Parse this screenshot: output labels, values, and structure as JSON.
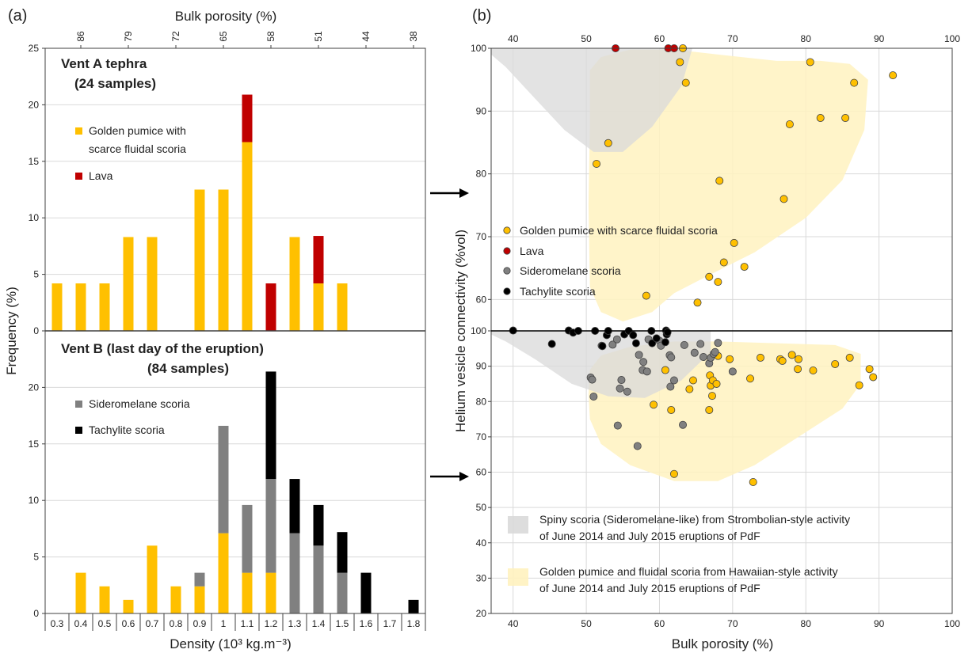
{
  "panel_labels": {
    "a": "(a)",
    "b": "(b)"
  },
  "colors": {
    "golden": "#FFC000",
    "lava": "#C00000",
    "sideromelane": "#808080",
    "tachylite": "#000000",
    "spiny_region": "#D9D9D9",
    "golden_region": "#FFF2BF",
    "grid": "#D9D9D9",
    "axis": "#404040"
  },
  "chart_data": [
    {
      "id": "a-top",
      "type": "bar",
      "title": "Vent A tephra",
      "subtitle": "(24 samples)",
      "top_axis_label": "Bulk porosity (%)",
      "top_tick_labels": [
        "86",
        "79",
        "72",
        "65",
        "58",
        "51",
        "44",
        "38"
      ],
      "ylabel": "Frequency (%)",
      "ylim": [
        0,
        25
      ],
      "yticks": [
        0,
        5,
        10,
        15,
        20,
        25
      ],
      "categories": [
        "0.3",
        "0.4",
        "0.5",
        "0.6",
        "0.7",
        "0.8",
        "0.9",
        "1",
        "1.1",
        "1.2",
        "1.3",
        "1.4",
        "1.5",
        "1.6",
        "1.7",
        "1.8"
      ],
      "stacked": true,
      "series": [
        {
          "name": "Golden pumice with\nscarce fluidal scoria",
          "color_key": "golden",
          "values": [
            4.2,
            4.2,
            4.2,
            8.3,
            8.3,
            0,
            12.5,
            12.5,
            16.7,
            0,
            8.3,
            4.2,
            4.2,
            0,
            0,
            0
          ]
        },
        {
          "name": "Lava",
          "color_key": "lava",
          "values": [
            0,
            0,
            0,
            0,
            0,
            0,
            0,
            0,
            4.2,
            4.2,
            0,
            4.2,
            0,
            0,
            0,
            0
          ]
        }
      ]
    },
    {
      "id": "a-bottom",
      "type": "bar",
      "title": "Vent B (last day of the eruption)",
      "subtitle": "(84 samples)",
      "ylabel": "Frequency (%)",
      "xlabel": "Density (10³ kg.m⁻³)",
      "ylim": [
        0,
        25
      ],
      "yticks": [
        0,
        5,
        10,
        15,
        20
      ],
      "categories": [
        "0.3",
        "0.4",
        "0.5",
        "0.6",
        "0.7",
        "0.8",
        "0.9",
        "1",
        "1.1",
        "1.2",
        "1.3",
        "1.4",
        "1.5",
        "1.6",
        "1.7",
        "1.8"
      ],
      "stacked": true,
      "series": [
        {
          "name": "",
          "color_key": "golden",
          "values": [
            0,
            3.6,
            2.4,
            1.2,
            6.0,
            2.4,
            2.4,
            7.1,
            3.6,
            3.6,
            0,
            0,
            0,
            0,
            0,
            0
          ]
        },
        {
          "name": "Sideromelane scoria",
          "color_key": "sideromelane",
          "values": [
            0,
            0,
            0,
            0,
            0,
            0,
            1.2,
            9.5,
            6.0,
            8.3,
            7.1,
            6.0,
            3.6,
            0,
            0,
            0
          ]
        },
        {
          "name": "Tachylite scoria",
          "color_key": "tachylite",
          "values": [
            0,
            0,
            0,
            0,
            0,
            0,
            0,
            0,
            0,
            9.5,
            4.8,
            3.6,
            3.6,
            3.6,
            0,
            1.2
          ]
        }
      ]
    },
    {
      "id": "b",
      "type": "scatter",
      "xlabel": "Bulk porosity (%)",
      "ylabel": "Helium vesicle connectivity (%vol)",
      "xlim": [
        37,
        100
      ],
      "xticks": [
        40,
        50,
        60,
        70,
        80,
        90,
        100
      ],
      "top_ylim": [
        55,
        100
      ],
      "top_yticks": [
        60,
        70,
        80,
        90,
        100
      ],
      "bottom_ylim": [
        20,
        100
      ],
      "bottom_yticks": [
        20,
        30,
        40,
        50,
        60,
        70,
        80,
        90,
        100
      ],
      "grid": true,
      "legend": [
        {
          "name": "Golden pumice with scarce fluidal scoria",
          "color_key": "golden"
        },
        {
          "name": "Lava",
          "color_key": "lava"
        },
        {
          "name": "Sideromelane scoria",
          "color_key": "sideromelane"
        },
        {
          "name": "Tachylite scoria",
          "color_key": "tachylite"
        }
      ],
      "regions": [
        {
          "name": "Spiny scoria (Sideromelane-like) from Strombolian-style activity\nof June 2014 and July 2015 eruptions of PdF",
          "color_key": "spiny_region"
        },
        {
          "name": "Golden pumice and fluidal scoria from Hawaiian-style activity\nof June 2014 and July 2015 eruptions of PdF",
          "color_key": "golden_region"
        }
      ],
      "top_series": [
        {
          "name": "Golden pumice with scarce fluidal scoria",
          "color_key": "golden",
          "points": [
            [
              51.4,
              81.6
            ],
            [
              53.0,
              84.9
            ],
            [
              58.2,
              60.6
            ],
            [
              62.8,
              97.8
            ],
            [
              63.2,
              100
            ],
            [
              63.6,
              94.5
            ],
            [
              65.2,
              59.5
            ],
            [
              66.8,
              63.6
            ],
            [
              68.0,
              62.8
            ],
            [
              68.2,
              78.9
            ],
            [
              68.8,
              65.9
            ],
            [
              70.2,
              69.0
            ],
            [
              71.6,
              65.2
            ],
            [
              77.0,
              76.0
            ],
            [
              77.8,
              87.9
            ],
            [
              80.6,
              97.8
            ],
            [
              82.0,
              88.9
            ],
            [
              85.4,
              88.9
            ],
            [
              86.6,
              94.5
            ],
            [
              91.9,
              95.7
            ]
          ]
        },
        {
          "name": "Lava",
          "color_key": "lava",
          "points": [
            [
              54.0,
              100
            ],
            [
              61.2,
              100
            ],
            [
              62.0,
              100
            ]
          ]
        }
      ],
      "bottom_series": [
        {
          "name": "Golden pumice",
          "color_key": "golden",
          "points": [
            [
              59.2,
              79.1
            ],
            [
              60.8,
              88.9
            ],
            [
              61.6,
              77.6
            ],
            [
              62.0,
              59.5
            ],
            [
              64.1,
              83.5
            ],
            [
              64.6,
              86.0
            ],
            [
              66.8,
              77.6
            ],
            [
              66.9,
              87.4
            ],
            [
              67.0,
              84.5
            ],
            [
              67.2,
              81.6
            ],
            [
              67.3,
              86.0
            ],
            [
              67.8,
              85.0
            ],
            [
              68.0,
              92.9
            ],
            [
              69.6,
              92.0
            ],
            [
              72.4,
              86.5
            ],
            [
              72.8,
              57.2
            ],
            [
              73.8,
              92.4
            ],
            [
              76.5,
              92.0
            ],
            [
              76.8,
              91.5
            ],
            [
              78.1,
              93.2
            ],
            [
              78.9,
              89.2
            ],
            [
              79.0,
              92.0
            ],
            [
              81.0,
              88.8
            ],
            [
              84.0,
              90.6
            ],
            [
              86.0,
              92.4
            ],
            [
              87.3,
              84.6
            ],
            [
              88.7,
              89.2
            ],
            [
              89.2,
              86.9
            ]
          ]
        },
        {
          "name": "Sideromelane scoria",
          "color_key": "sideromelane",
          "points": [
            [
              50.6,
              86.8
            ],
            [
              50.8,
              86.2
            ],
            [
              51.0,
              81.4
            ],
            [
              52.1,
              95.8
            ],
            [
              53.6,
              96.1
            ],
            [
              54.2,
              97.6
            ],
            [
              54.3,
              73.2
            ],
            [
              54.6,
              83.7
            ],
            [
              54.8,
              86.1
            ],
            [
              55.6,
              82.8
            ],
            [
              57.0,
              67.4
            ],
            [
              57.2,
              93.2
            ],
            [
              57.7,
              88.9
            ],
            [
              57.8,
              91.2
            ],
            [
              58.3,
              88.5
            ],
            [
              58.5,
              97.6
            ],
            [
              60.0,
              97.2
            ],
            [
              60.2,
              95.8
            ],
            [
              61.4,
              93.1
            ],
            [
              61.6,
              92.5
            ],
            [
              61.5,
              84.2
            ],
            [
              62.0,
              86.0
            ],
            [
              63.2,
              73.4
            ],
            [
              63.4,
              96.0
            ],
            [
              64.8,
              93.8
            ],
            [
              65.6,
              96.3
            ],
            [
              66.0,
              92.6
            ],
            [
              66.8,
              90.8
            ],
            [
              67.0,
              92.4
            ],
            [
              67.4,
              93.5
            ],
            [
              67.6,
              94.0
            ],
            [
              68.0,
              96.6
            ],
            [
              70.0,
              88.5
            ]
          ]
        },
        {
          "name": "Tachylite scoria",
          "color_key": "tachylite",
          "points": [
            [
              40.0,
              100.1
            ],
            [
              45.3,
              96.3
            ],
            [
              47.6,
              100.1
            ],
            [
              48.2,
              99.5
            ],
            [
              48.9,
              100.0
            ],
            [
              51.2,
              100.0
            ],
            [
              52.2,
              95.7
            ],
            [
              52.8,
              98.8
            ],
            [
              53.0,
              100.0
            ],
            [
              55.2,
              99.0
            ],
            [
              55.8,
              100.0
            ],
            [
              56.4,
              98.8
            ],
            [
              56.8,
              96.5
            ],
            [
              58.9,
              100.0
            ],
            [
              59.0,
              96.5
            ],
            [
              59.6,
              97.9
            ],
            [
              60.8,
              96.8
            ],
            [
              60.9,
              100.1
            ],
            [
              61.0,
              99.0
            ],
            [
              61.1,
              99.6
            ]
          ]
        }
      ]
    }
  ]
}
